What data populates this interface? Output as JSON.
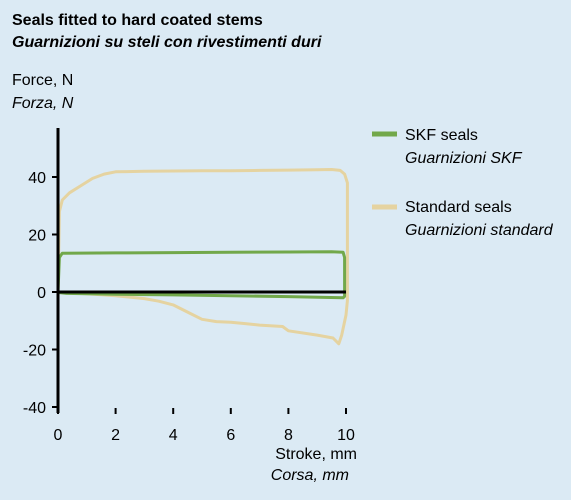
{
  "chart_data": {
    "type": "line",
    "title": "Seals fitted to hard coated stems",
    "subtitle": "Guarnizioni su steli con rivestimenti duri",
    "ylabel": "Force, N",
    "ylabel_it": "Forza, N",
    "xlabel": "Stroke, mm",
    "xlabel_it": "Corsa, mm",
    "xlim": [
      0,
      10
    ],
    "ylim": [
      -40,
      50
    ],
    "xticks": [
      0,
      2,
      4,
      6,
      8,
      10
    ],
    "yticks": [
      -40,
      -20,
      0,
      20,
      40
    ],
    "grid": false,
    "legend_position": "right",
    "series": [
      {
        "name": "SKF seals",
        "name_it": "Guarnizioni SKF",
        "color": "#72a84a",
        "x": [
          0,
          0.05,
          0.15,
          2,
          4,
          6,
          8,
          9.5,
          9.9,
          9.95,
          9.95,
          9.9,
          8,
          6,
          4,
          2,
          0.3,
          0.05,
          0.05
        ],
        "y": [
          0,
          12,
          13.5,
          13.6,
          13.7,
          13.8,
          13.9,
          14,
          13.8,
          12,
          -1.5,
          -2,
          -1.6,
          -1.3,
          -1,
          -0.8,
          -0.5,
          -0.2,
          0
        ]
      },
      {
        "name": "Standard seals",
        "name_it": "Guarnizioni standard",
        "color": "#e5d3a0",
        "x": [
          0,
          0.05,
          0.15,
          0.4,
          0.8,
          1.2,
          1.6,
          2,
          3,
          4,
          5,
          6,
          7,
          8,
          9,
          9.5,
          9.8,
          9.95,
          10.05,
          10.05,
          10,
          9.85,
          9.75,
          9.55,
          9,
          8,
          7.8,
          7,
          6.5,
          6,
          5.5,
          5,
          4.5,
          4,
          3.5,
          3,
          2,
          1,
          0.3,
          0
        ],
        "y": [
          0,
          28,
          32,
          34.5,
          37,
          39.5,
          41,
          41.8,
          42,
          42.1,
          42.2,
          42.2,
          42.3,
          42.4,
          42.5,
          42.6,
          42.3,
          41,
          38,
          -3,
          -8,
          -15,
          -18,
          -16,
          -15,
          -13.5,
          -12,
          -11.5,
          -11,
          -10.5,
          -10.3,
          -9.5,
          -7,
          -4.5,
          -3.2,
          -2.3,
          -1.3,
          -0.6,
          -0.2,
          0
        ]
      }
    ]
  }
}
